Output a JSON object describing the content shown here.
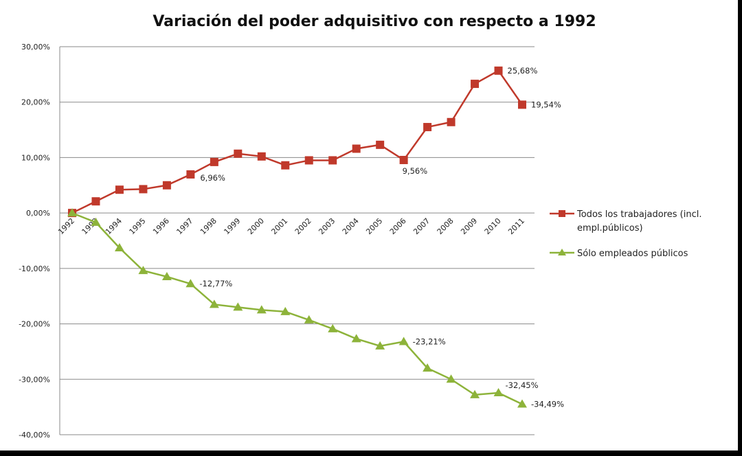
{
  "chart_data": {
    "type": "line",
    "title": "Variación del poder adquisitivo con respecto a 1992",
    "xlabel": "",
    "ylabel": "",
    "ylim": [
      -40,
      30
    ],
    "yticks": [
      30,
      20,
      10,
      0,
      -10,
      -20,
      -30,
      -40
    ],
    "ytick_labels": [
      "30,00%",
      "20,00%",
      "10,00%",
      "0,00%",
      "-10,00%",
      "-20,00%",
      "-30,00%",
      "-40,00%"
    ],
    "grid": true,
    "legend_position": "right",
    "categories": [
      "1992",
      "1993",
      "1994",
      "1995",
      "1996",
      "1997",
      "1998",
      "1999",
      "2000",
      "2001",
      "2002",
      "2003",
      "2004",
      "2005",
      "2006",
      "2007",
      "2008",
      "2009",
      "2010",
      "2011"
    ],
    "series": [
      {
        "name": "Todos los trabajadores  (incl. empl.públicos)",
        "legend_lines": [
          "Todos los trabajadores  (incl.",
          "empl.públicos)"
        ],
        "color": "#c0392b",
        "marker": "square",
        "values": [
          0,
          2.1,
          4.2,
          4.3,
          5.0,
          6.96,
          9.2,
          10.7,
          10.2,
          8.6,
          9.5,
          9.5,
          11.6,
          12.3,
          9.56,
          15.5,
          16.4,
          23.3,
          25.68,
          19.54
        ],
        "annotations": [
          {
            "index": 5,
            "text": "6,96%"
          },
          {
            "index": 14,
            "text": "9,56%"
          },
          {
            "index": 18,
            "text": "25,68%"
          },
          {
            "index": 19,
            "text": "19,54%"
          }
        ]
      },
      {
        "name": "Sólo empleados  públicos",
        "legend_lines": [
          "Sólo empleados  públicos"
        ],
        "color": "#8db33a",
        "marker": "triangle",
        "values": [
          0,
          -1.7,
          -6.3,
          -10.4,
          -11.5,
          -12.77,
          -16.5,
          -17.0,
          -17.5,
          -17.8,
          -19.3,
          -20.9,
          -22.7,
          -24.0,
          -23.21,
          -28.0,
          -30.0,
          -32.8,
          -32.45,
          -34.49
        ],
        "annotations": [
          {
            "index": 5,
            "text": "-12,77%"
          },
          {
            "index": 14,
            "text": "-23,21%"
          },
          {
            "index": 18,
            "text": "-32,45%"
          },
          {
            "index": 19,
            "text": "-34,49%"
          }
        ]
      }
    ]
  }
}
